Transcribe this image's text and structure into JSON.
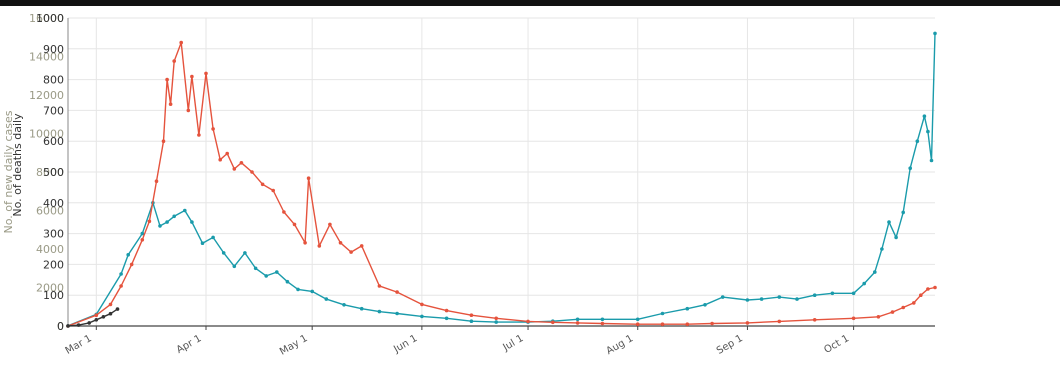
{
  "chart_data": {
    "type": "line",
    "title": "",
    "xlabel": "",
    "y_left_label": "No. of deaths daily",
    "y_right_label": "No. of new daily cases",
    "y_left_ticks": [
      "0",
      "100",
      "200",
      "300",
      "400",
      "500",
      "600",
      "700",
      "800",
      "900",
      "1000"
    ],
    "y_right_ticks": [
      "0",
      "2000",
      "4000",
      "6000",
      "8000",
      "10000",
      "12000",
      "14000",
      "16000"
    ],
    "y_left_lim": [
      0,
      1000
    ],
    "y_right_lim": [
      0,
      16000
    ],
    "x_ticks": [
      "Mar 1",
      "Apr 1",
      "May 1",
      "Jun 1",
      "Jul 1",
      "Aug 1",
      "Sep 1",
      "Oct 1"
    ],
    "grid": true,
    "colors": {
      "cases": "#1a9bab",
      "deaths": "#e5533d",
      "early": "#333333",
      "grid": "#e6e6e6",
      "left_axis": "#333333",
      "right_axis": "#9a9a86"
    },
    "series": [
      {
        "axis": "right",
        "color_key": "cases",
        "x": [
          "Feb 22",
          "Mar 1",
          "Mar 8",
          "Mar 10",
          "Mar 14",
          "Mar 17",
          "Mar 19",
          "Mar 21",
          "Mar 23",
          "Mar 26",
          "Mar 28",
          "Mar 31",
          "Apr 3",
          "Apr 6",
          "Apr 9",
          "Apr 12",
          "Apr 15",
          "Apr 18",
          "Apr 21",
          "Apr 24",
          "Apr 27",
          "May 1",
          "May 5",
          "May 10",
          "May 15",
          "May 20",
          "May 25",
          "Jun 1",
          "Jun 8",
          "Jun 15",
          "Jun 22",
          "Jul 1",
          "Jul 8",
          "Jul 15",
          "Jul 22",
          "Aug 1",
          "Aug 8",
          "Aug 15",
          "Aug 20",
          "Aug 25",
          "Sep 1",
          "Sep 5",
          "Sep 10",
          "Sep 15",
          "Sep 20",
          "Sep 25",
          "Oct 1",
          "Oct 4",
          "Oct 7",
          "Oct 9",
          "Oct 11",
          "Oct 13",
          "Oct 15",
          "Oct 17",
          "Oct 19",
          "Oct 21",
          "Oct 22",
          "Oct 23",
          "Oct 24"
        ],
        "y": [
          10,
          600,
          2700,
          3700,
          4800,
          6400,
          5200,
          5400,
          5700,
          6000,
          5400,
          4300,
          4600,
          3800,
          3100,
          3800,
          3000,
          2600,
          2800,
          2300,
          1900,
          1800,
          1400,
          1100,
          900,
          750,
          650,
          500,
          400,
          250,
          200,
          200,
          250,
          350,
          350,
          350,
          650,
          900,
          1100,
          1500,
          1350,
          1400,
          1500,
          1400,
          1600,
          1700,
          1700,
          2200,
          2800,
          4000,
          5400,
          4600,
          5900,
          8200,
          9600,
          10900,
          10100,
          8600,
          15200
        ]
      },
      {
        "axis": "left",
        "color_key": "deaths",
        "x": [
          "Feb 22",
          "Mar 1",
          "Mar 5",
          "Mar 8",
          "Mar 11",
          "Mar 14",
          "Mar 16",
          "Mar 18",
          "Mar 20",
          "Mar 21",
          "Mar 22",
          "Mar 23",
          "Mar 25",
          "Mar 27",
          "Mar 28",
          "Mar 30",
          "Apr 1",
          "Apr 3",
          "Apr 5",
          "Apr 7",
          "Apr 9",
          "Apr 11",
          "Apr 14",
          "Apr 17",
          "Apr 20",
          "Apr 23",
          "Apr 26",
          "Apr 29",
          "Apr 30",
          "May 3",
          "May 6",
          "May 9",
          "May 12",
          "May 15",
          "May 20",
          "May 25",
          "Jun 1",
          "Jun 8",
          "Jun 15",
          "Jun 22",
          "Jul 1",
          "Jul 8",
          "Jul 15",
          "Jul 22",
          "Aug 1",
          "Aug 8",
          "Aug 15",
          "Aug 22",
          "Sep 1",
          "Sep 10",
          "Sep 20",
          "Oct 1",
          "Oct 8",
          "Oct 12",
          "Oct 15",
          "Oct 18",
          "Oct 20",
          "Oct 22",
          "Oct 24"
        ],
        "y": [
          0,
          35,
          70,
          130,
          200,
          280,
          340,
          470,
          600,
          800,
          720,
          860,
          920,
          700,
          810,
          620,
          820,
          640,
          540,
          560,
          510,
          530,
          500,
          460,
          440,
          370,
          330,
          270,
          480,
          260,
          330,
          270,
          240,
          260,
          130,
          110,
          70,
          50,
          35,
          25,
          15,
          12,
          10,
          8,
          6,
          6,
          6,
          8,
          10,
          15,
          20,
          25,
          30,
          45,
          60,
          75,
          100,
          120,
          125
        ]
      },
      {
        "axis": "left",
        "color_key": "early",
        "x": [
          "Feb 22",
          "Feb 25",
          "Feb 28",
          "Mar 1",
          "Mar 3",
          "Mar 5",
          "Mar 7"
        ],
        "y": [
          0,
          3,
          10,
          20,
          30,
          40,
          55
        ]
      }
    ]
  }
}
